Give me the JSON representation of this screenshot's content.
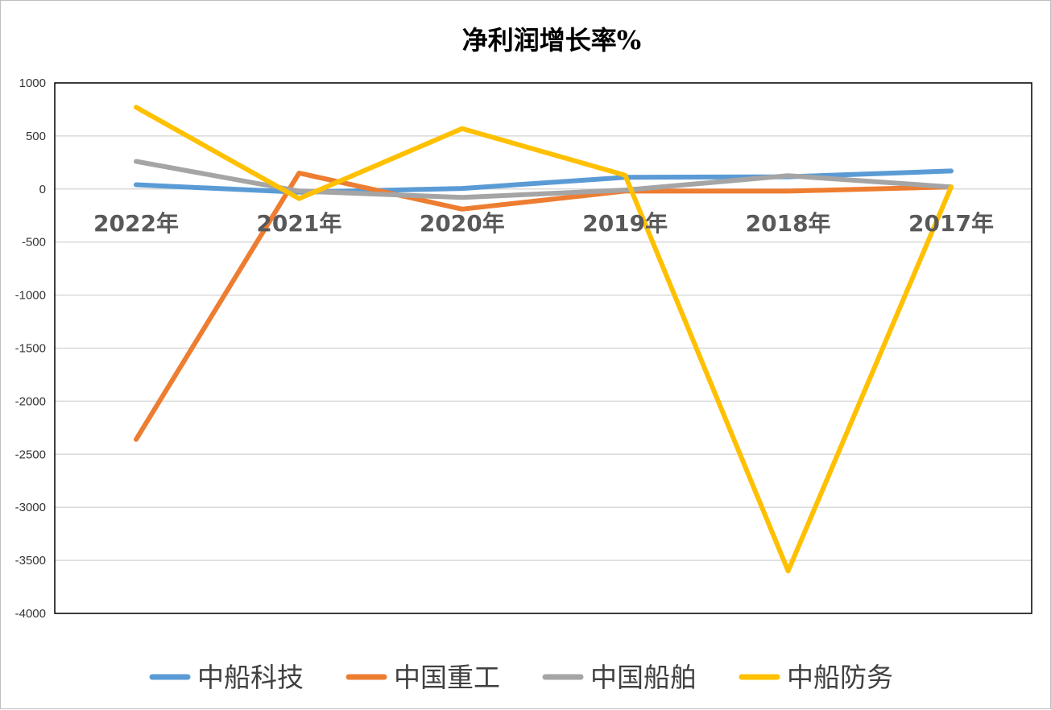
{
  "colors": {
    "background": "#ffffff",
    "gridline": "#d9d9d9",
    "plot_border": "#000000",
    "series": [
      "#5b9bd5",
      "#ed7d31",
      "#a5a5a5",
      "#ffc000"
    ]
  },
  "chart_data": {
    "type": "line",
    "title": "净利润增长率%",
    "xlabel": "",
    "ylabel": "",
    "categories": [
      "2022年",
      "2021年",
      "2020年",
      "2019年",
      "2018年",
      "2017年"
    ],
    "yticks": [
      "1000",
      "500",
      "0",
      "-500",
      "-1000",
      "-1500",
      "-2000",
      "-2500",
      "-3000",
      "-3500",
      "-4000"
    ],
    "ylim": [
      -4000,
      1000
    ],
    "grid": true,
    "legend_position": "bottom",
    "series": [
      {
        "name": "中船科技",
        "values": [
          40,
          -30,
          5,
          110,
          115,
          170
        ]
      },
      {
        "name": "中国重工",
        "values": [
          -2360,
          150,
          -190,
          -20,
          -20,
          20
        ]
      },
      {
        "name": "中国船舶",
        "values": [
          260,
          -20,
          -80,
          -10,
          125,
          20
        ]
      },
      {
        "name": "中船防务",
        "values": [
          770,
          -90,
          570,
          130,
          -3600,
          20
        ]
      }
    ]
  }
}
